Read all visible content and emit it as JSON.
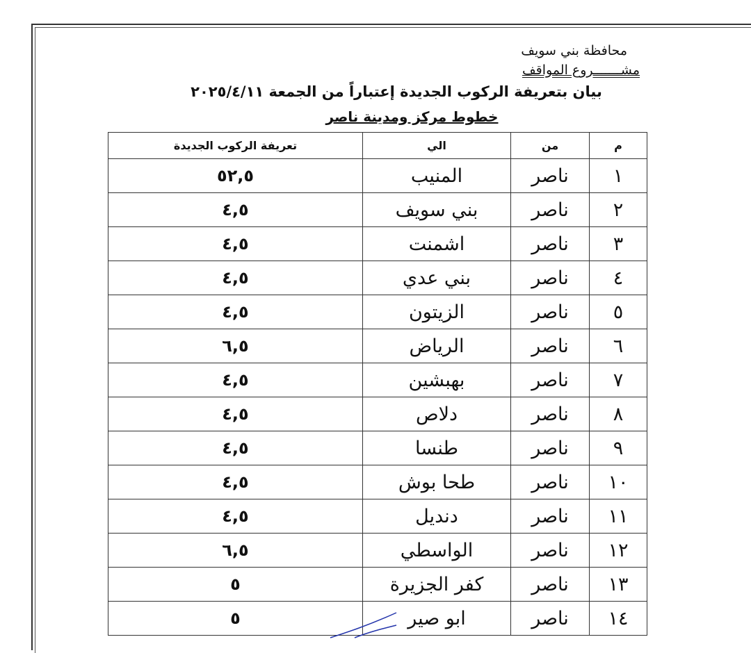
{
  "header": {
    "governorate": "محافظة بني سويف",
    "project": "مشـــــــروع المواقف",
    "title": "بيان بتعريفة الركوب الجديدة إعتباراً من الجمعة ٢٠٢٥/٤/١١",
    "subtitle": "خطوط مركز ومدينة ناصر"
  },
  "table": {
    "columns": [
      "م",
      "من",
      "الي",
      "تعريفة الركوب الجديدة"
    ],
    "rows": [
      {
        "n": "١",
        "from": "ناصر",
        "to": "المنيب",
        "fare": "٥٢,٥"
      },
      {
        "n": "٢",
        "from": "ناصر",
        "to": "بني سويف",
        "fare": "٤,٥"
      },
      {
        "n": "٣",
        "from": "ناصر",
        "to": "اشمنت",
        "fare": "٤,٥"
      },
      {
        "n": "٤",
        "from": "ناصر",
        "to": "بني عدي",
        "fare": "٤,٥"
      },
      {
        "n": "٥",
        "from": "ناصر",
        "to": "الزيتون",
        "fare": "٤,٥"
      },
      {
        "n": "٦",
        "from": "ناصر",
        "to": "الرياض",
        "fare": "٦,٥"
      },
      {
        "n": "٧",
        "from": "ناصر",
        "to": "بهبشين",
        "fare": "٤,٥"
      },
      {
        "n": "٨",
        "from": "ناصر",
        "to": "دلاص",
        "fare": "٤,٥"
      },
      {
        "n": "٩",
        "from": "ناصر",
        "to": "طنسا",
        "fare": "٤,٥"
      },
      {
        "n": "١٠",
        "from": "ناصر",
        "to": "طحا بوش",
        "fare": "٤,٥"
      },
      {
        "n": "١١",
        "from": "ناصر",
        "to": "دنديل",
        "fare": "٤,٥"
      },
      {
        "n": "١٢",
        "from": "ناصر",
        "to": "الواسطي",
        "fare": "٦,٥"
      },
      {
        "n": "١٣",
        "from": "ناصر",
        "to": "كفر الجزيرة",
        "fare": "٥"
      },
      {
        "n": "١٤",
        "from": "ناصر",
        "to": "ابو صير",
        "fare": "٥"
      }
    ]
  }
}
